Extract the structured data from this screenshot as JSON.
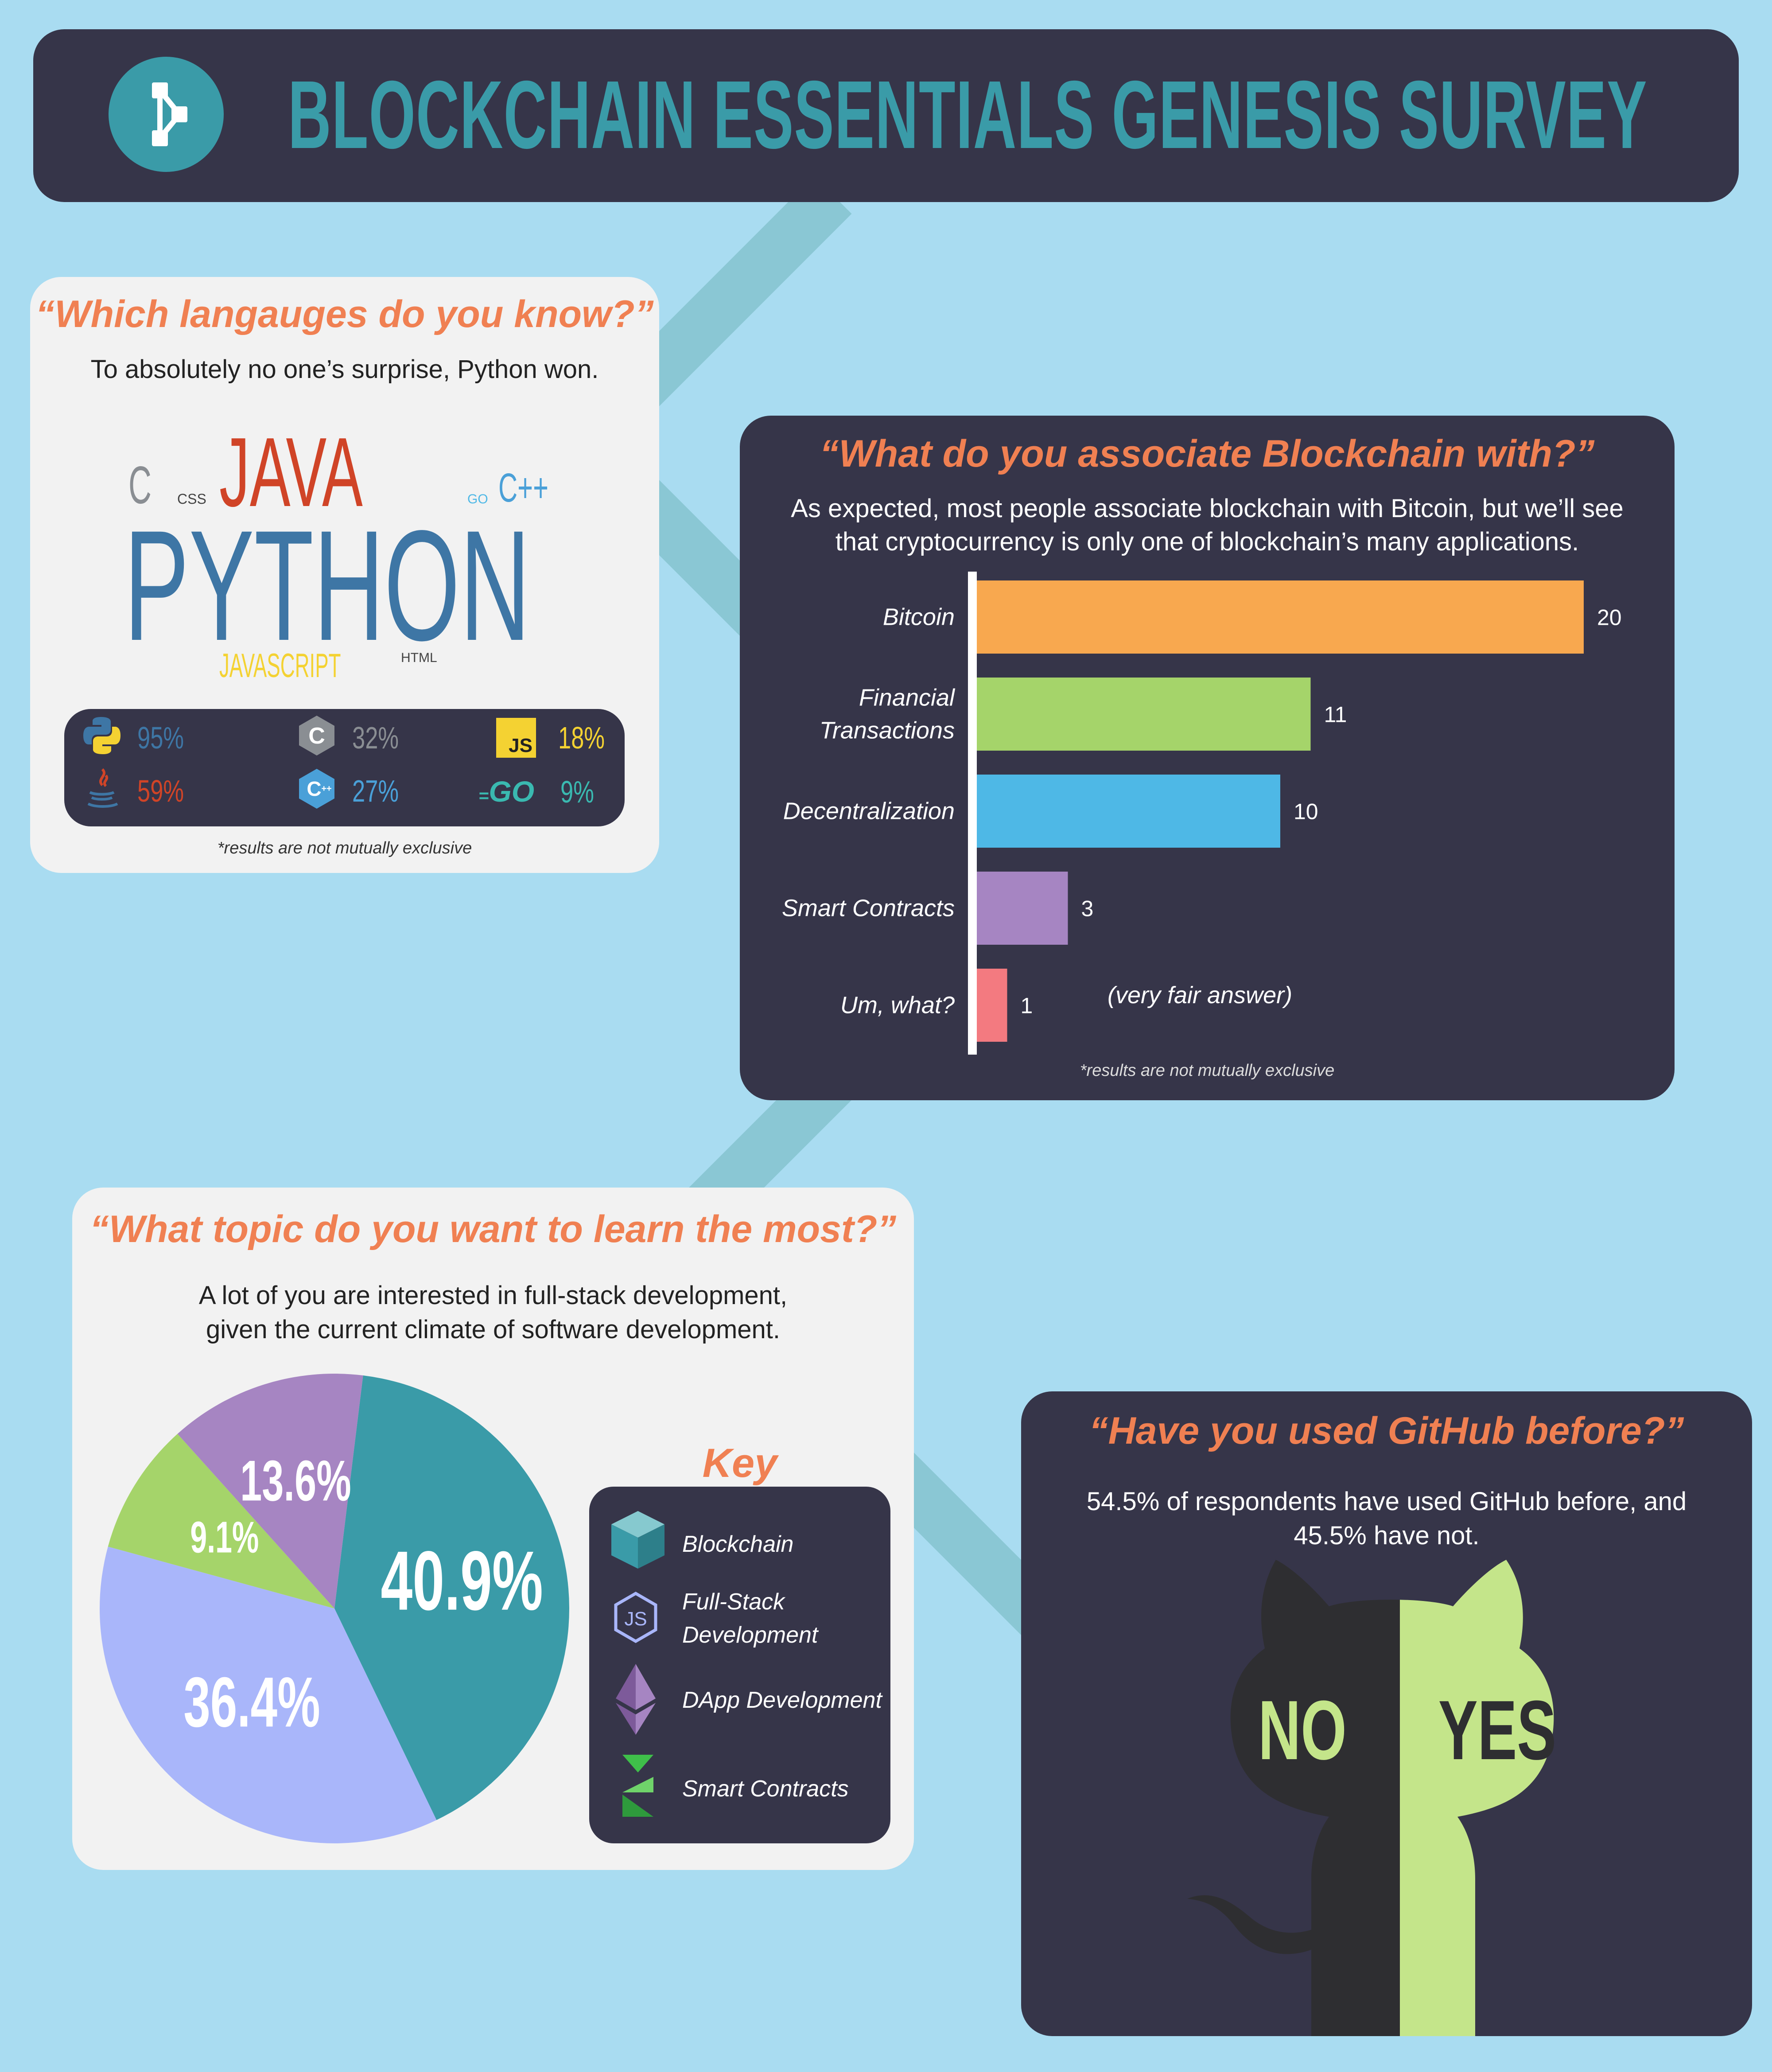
{
  "header": {
    "title": "BLOCKCHAIN ESSENTIALS GENESIS SURVEY",
    "logo_icon": "blockchain-network-icon",
    "bg_color": "#363549",
    "accent_color": "#3a9ba8"
  },
  "languages": {
    "title": "“Which langauges do you know?”",
    "subtitle": "To absolutely no one’s surprise, Python won.",
    "cloud": {
      "c": "C",
      "css": "CSS",
      "java": "JAVA",
      "go": "GO",
      "cpp": "C++",
      "python": "PYTHON",
      "javascript": "JAVASCRIPT",
      "html": "HTML"
    },
    "stats": [
      {
        "icon": "python-icon",
        "value": "95%"
      },
      {
        "icon": "c-icon",
        "value": "32%"
      },
      {
        "icon": "js-icon",
        "value": "18%"
      },
      {
        "icon": "java-icon",
        "value": "59%"
      },
      {
        "icon": "cpp-icon",
        "value": "27%"
      },
      {
        "icon": "go-icon",
        "value": "9%"
      }
    ],
    "js_badge": "JS",
    "go_badge": "GO",
    "footnote": "*results are not mutually exclusive"
  },
  "associate": {
    "title": "“What do you associate Blockchain with?”",
    "subtitle_line1": "As expected, most people associate blockchain with Bitcoin, but we’ll see",
    "subtitle_line2": "that cryptocurrency is only one of blockchain’s many applications.",
    "annotation": "(very fair answer)",
    "footnote": "*results are not mutually exclusive"
  },
  "chart_data": [
    {
      "type": "bar",
      "orientation": "horizontal",
      "categories": [
        "Bitcoin",
        "Financial Transactions",
        "Decentralization",
        "Smart Contracts",
        "Um, what?"
      ],
      "category_lines": [
        [
          "Bitcoin"
        ],
        [
          "Financial",
          "Transactions"
        ],
        [
          "Decentralization"
        ],
        [
          "Smart Contracts"
        ],
        [
          "Um, what?"
        ]
      ],
      "values": [
        20,
        11,
        10,
        3,
        1
      ],
      "value_labels": [
        "20",
        "11",
        "10",
        "3",
        "1"
      ],
      "colors": [
        "#f8a84f",
        "#a5d46a",
        "#4eb8e6",
        "#a685c2",
        "#f37a80"
      ],
      "xlim": [
        0,
        20
      ]
    },
    {
      "type": "pie",
      "categories": [
        "Blockchain",
        "Full-Stack Development",
        "DApp Development",
        "Smart Contracts"
      ],
      "values": [
        40.9,
        36.4,
        9.1,
        13.6
      ],
      "value_labels": [
        "40.9%",
        "36.4%",
        "9.1%",
        "13.6%"
      ],
      "colors": [
        "#3a9ba8",
        "#a9b6fa",
        "#a5d46a",
        "#a685c2"
      ]
    },
    {
      "type": "pie",
      "categories": [
        "NO",
        "YES"
      ],
      "values": [
        45.5,
        54.5
      ],
      "colors": [
        "#2e2e31",
        "#c4e58a"
      ]
    }
  ],
  "topic": {
    "title": "“What topic do you want to learn the most?”",
    "subtitle_line1": "A lot of you are interested in full-stack development,",
    "subtitle_line2": "given the current climate of software development.",
    "key_title": "Key",
    "key_items": [
      {
        "icon": "cube-icon",
        "label_lines": [
          "Blockchain"
        ]
      },
      {
        "icon": "nodejs-icon",
        "label_lines": [
          "Full-Stack",
          "Development"
        ]
      },
      {
        "icon": "ethereum-icon",
        "label_lines": [
          "DApp Development"
        ]
      },
      {
        "icon": "smart-contract-icon",
        "label_lines": [
          "Smart Contracts"
        ]
      }
    ]
  },
  "github": {
    "title": "“Have you used GitHub before?”",
    "subtitle_line1": "54.5% of respondents have used GitHub before, and",
    "subtitle_line2": "45.5% have not.",
    "no_label": "NO",
    "yes_label": "YES"
  }
}
